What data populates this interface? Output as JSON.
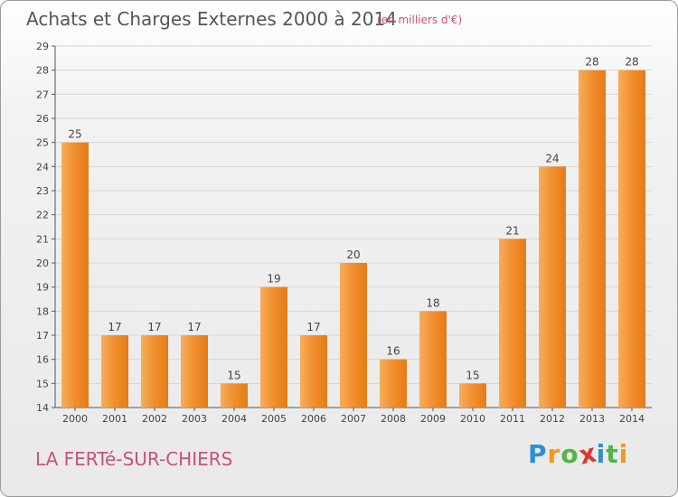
{
  "header": {
    "title": "Achats et Charges Externes 2000 à 2014",
    "unit_note": "(en milliers d'€)"
  },
  "footer": {
    "place_name": "LA FERTé-SUR-CHIERS",
    "brand": {
      "letters": [
        "P",
        "r",
        "o",
        "x",
        "i",
        "t",
        "i"
      ],
      "colors": [
        "#2e8fd0",
        "#f39a1e",
        "#53b44a",
        "#e0342c",
        "#2e8fd0",
        "#53b44a",
        "#f39a1e"
      ]
    }
  },
  "chart_data": {
    "type": "bar",
    "categories": [
      "2000",
      "2001",
      "2002",
      "2003",
      "2004",
      "2005",
      "2006",
      "2007",
      "2008",
      "2009",
      "2010",
      "2011",
      "2012",
      "2013",
      "2014"
    ],
    "values": [
      25,
      17,
      17,
      17,
      15,
      19,
      17,
      20,
      16,
      18,
      15,
      21,
      24,
      28,
      28
    ],
    "data_labels": [
      "25",
      "17",
      "17",
      "17",
      "15",
      "19",
      "17",
      "20",
      "16",
      "18",
      "15",
      "21",
      "24",
      "28",
      "28"
    ],
    "yticks": [
      14,
      15,
      16,
      17,
      18,
      19,
      20,
      21,
      22,
      23,
      24,
      25,
      26,
      27,
      28,
      29
    ],
    "ylim": [
      14,
      29
    ],
    "grid": true,
    "bar_color": "#f08c2a",
    "bar_color_light": "#f7ad5a",
    "bar_color_dark": "#e47c18"
  }
}
